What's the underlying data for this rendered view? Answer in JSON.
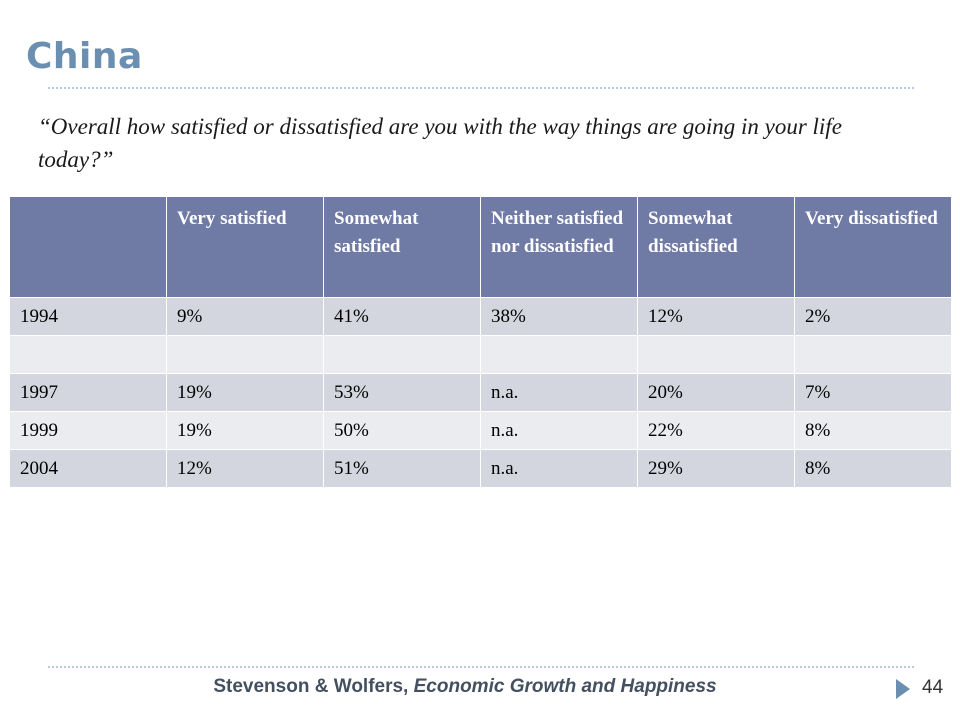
{
  "slide": {
    "title": "China",
    "question": "“Overall how satisfied or dissatisfied are you with the way things are going in your life today?”"
  },
  "table": {
    "headers": [
      "",
      "Very satisfied",
      "Somewhat satisfied",
      "Neither satisfied nor dissatisfied",
      "Somewhat dissatisfied",
      "Very dissatisfied"
    ],
    "rows": [
      [
        "1994",
        "9%",
        "41%",
        "38%",
        "12%",
        "2%"
      ],
      [
        "",
        "",
        "",
        "",
        "",
        ""
      ],
      [
        "1997",
        "19%",
        "53%",
        "n.a.",
        "20%",
        "7%"
      ],
      [
        "1999",
        "19%",
        "50%",
        "n.a.",
        "22%",
        "8%"
      ],
      [
        "2004",
        "12%",
        "51%",
        "n.a.",
        "29%",
        "8%"
      ]
    ]
  },
  "footer": {
    "authors": "Stevenson & Wolfers, ",
    "work": "Economic Growth and Happiness",
    "page_number": "44"
  },
  "colors": {
    "title": "#6b8fb0",
    "header_bg": "#6f7aa5",
    "row_dark": "#d4d6df",
    "row_light": "#ebecf0"
  }
}
